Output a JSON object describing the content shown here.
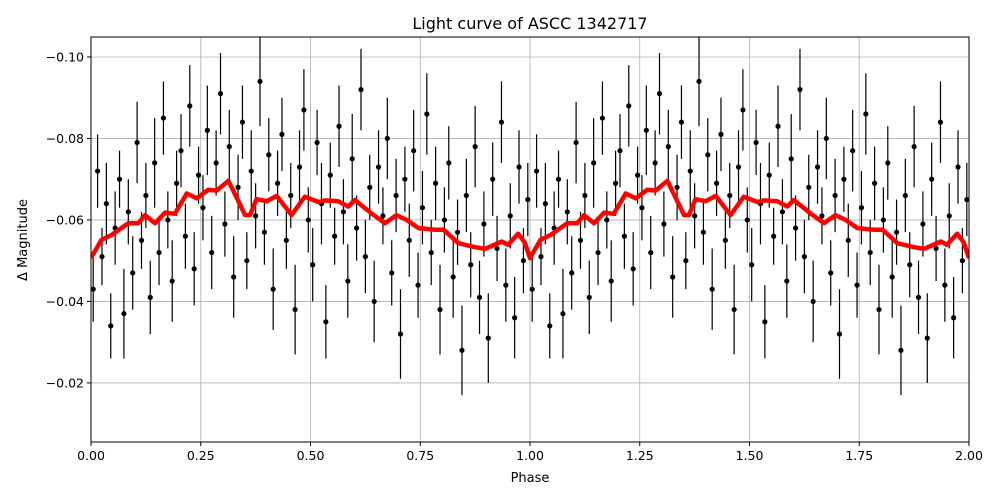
{
  "chart_data": {
    "type": "scatter",
    "title": "Light curve of ASCC 1342717",
    "xlabel": "Phase",
    "ylabel": "Δ Magnitude",
    "xlim": [
      0,
      2
    ],
    "ylim": [
      -0.1049,
      -0.0055
    ],
    "y_inverted": true,
    "grid": true,
    "x_ticks": [
      "0.00",
      "0.25",
      "0.50",
      "0.75",
      "1.00",
      "1.25",
      "1.50",
      "1.75",
      "2.00"
    ],
    "x_tick_values": [
      0,
      0.25,
      0.5,
      0.75,
      1.0,
      1.25,
      1.5,
      1.75,
      2.0
    ],
    "y_ticks": [
      "−0.10",
      "−0.08",
      "−0.06",
      "−0.04",
      "−0.02"
    ],
    "y_tick_values": [
      -0.1,
      -0.08,
      -0.06,
      -0.04,
      -0.02
    ],
    "colors": {
      "points": "#000000",
      "model": "#ff0000"
    },
    "series": [
      {
        "kind": "errorbar-points",
        "color": "#000000",
        "points_phase_mag_err": [
          [
            0.005,
            -0.043,
            0.008
          ],
          [
            0.015,
            -0.072,
            0.009
          ],
          [
            0.025,
            -0.051,
            0.007
          ],
          [
            0.035,
            -0.064,
            0.01
          ],
          [
            0.045,
            -0.034,
            0.008
          ],
          [
            0.055,
            -0.058,
            0.009
          ],
          [
            0.065,
            -0.07,
            0.007
          ],
          [
            0.075,
            -0.037,
            0.011
          ],
          [
            0.085,
            -0.062,
            0.008
          ],
          [
            0.095,
            -0.047,
            0.009
          ],
          [
            0.105,
            -0.079,
            0.01
          ],
          [
            0.115,
            -0.055,
            0.007
          ],
          [
            0.125,
            -0.066,
            0.008
          ],
          [
            0.135,
            -0.041,
            0.009
          ],
          [
            0.145,
            -0.074,
            0.011
          ],
          [
            0.155,
            -0.052,
            0.008
          ],
          [
            0.165,
            -0.085,
            0.009
          ],
          [
            0.175,
            -0.06,
            0.007
          ],
          [
            0.185,
            -0.045,
            0.01
          ],
          [
            0.195,
            -0.069,
            0.008
          ],
          [
            0.205,
            -0.077,
            0.009
          ],
          [
            0.215,
            -0.056,
            0.008
          ],
          [
            0.225,
            -0.088,
            0.01
          ],
          [
            0.235,
            -0.048,
            0.009
          ],
          [
            0.245,
            -0.071,
            0.007
          ],
          [
            0.255,
            -0.063,
            0.008
          ],
          [
            0.265,
            -0.082,
            0.011
          ],
          [
            0.275,
            -0.052,
            0.009
          ],
          [
            0.285,
            -0.074,
            0.008
          ],
          [
            0.295,
            -0.091,
            0.01
          ],
          [
            0.305,
            -0.059,
            0.008
          ],
          [
            0.315,
            -0.078,
            0.009
          ],
          [
            0.325,
            -0.046,
            0.01
          ],
          [
            0.335,
            -0.068,
            0.008
          ],
          [
            0.345,
            -0.084,
            0.009
          ],
          [
            0.355,
            -0.05,
            0.007
          ],
          [
            0.365,
            -0.072,
            0.01
          ],
          [
            0.375,
            -0.061,
            0.008
          ],
          [
            0.385,
            -0.094,
            0.011
          ],
          [
            0.395,
            -0.057,
            0.008
          ],
          [
            0.405,
            -0.076,
            0.009
          ],
          [
            0.415,
            -0.043,
            0.01
          ],
          [
            0.425,
            -0.069,
            0.008
          ],
          [
            0.435,
            -0.081,
            0.009
          ],
          [
            0.445,
            -0.055,
            0.007
          ],
          [
            0.455,
            -0.066,
            0.008
          ],
          [
            0.465,
            -0.038,
            0.011
          ],
          [
            0.475,
            -0.073,
            0.009
          ],
          [
            0.485,
            -0.087,
            0.01
          ],
          [
            0.495,
            -0.06,
            0.008
          ],
          [
            0.505,
            -0.049,
            0.009
          ],
          [
            0.515,
            -0.079,
            0.008
          ],
          [
            0.525,
            -0.064,
            0.01
          ],
          [
            0.535,
            -0.035,
            0.009
          ],
          [
            0.545,
            -0.071,
            0.008
          ],
          [
            0.555,
            -0.056,
            0.007
          ],
          [
            0.565,
            -0.083,
            0.01
          ],
          [
            0.575,
            -0.062,
            0.008
          ],
          [
            0.585,
            -0.045,
            0.009
          ],
          [
            0.595,
            -0.075,
            0.011
          ],
          [
            0.605,
            -0.058,
            0.008
          ],
          [
            0.615,
            -0.092,
            0.01
          ],
          [
            0.625,
            -0.051,
            0.009
          ],
          [
            0.635,
            -0.068,
            0.008
          ],
          [
            0.645,
            -0.04,
            0.01
          ],
          [
            0.655,
            -0.073,
            0.009
          ],
          [
            0.665,
            -0.061,
            0.007
          ],
          [
            0.675,
            -0.08,
            0.01
          ],
          [
            0.685,
            -0.047,
            0.008
          ],
          [
            0.695,
            -0.066,
            0.009
          ],
          [
            0.705,
            -0.032,
            0.011
          ],
          [
            0.715,
            -0.07,
            0.008
          ],
          [
            0.725,
            -0.055,
            0.009
          ],
          [
            0.735,
            -0.077,
            0.01
          ],
          [
            0.745,
            -0.044,
            0.008
          ],
          [
            0.755,
            -0.063,
            0.009
          ],
          [
            0.765,
            -0.086,
            0.01
          ],
          [
            0.775,
            -0.052,
            0.008
          ],
          [
            0.785,
            -0.069,
            0.009
          ],
          [
            0.795,
            -0.038,
            0.011
          ],
          [
            0.805,
            -0.06,
            0.008
          ],
          [
            0.815,
            -0.074,
            0.009
          ],
          [
            0.825,
            -0.046,
            0.01
          ],
          [
            0.835,
            -0.057,
            0.008
          ],
          [
            0.845,
            -0.028,
            0.011
          ],
          [
            0.855,
            -0.066,
            0.009
          ],
          [
            0.865,
            -0.049,
            0.008
          ],
          [
            0.875,
            -0.078,
            0.01
          ],
          [
            0.885,
            -0.041,
            0.009
          ],
          [
            0.895,
            -0.059,
            0.008
          ],
          [
            0.905,
            -0.031,
            0.011
          ],
          [
            0.915,
            -0.07,
            0.009
          ],
          [
            0.925,
            -0.053,
            0.008
          ],
          [
            0.935,
            -0.084,
            0.01
          ],
          [
            0.945,
            -0.044,
            0.009
          ],
          [
            0.955,
            -0.061,
            0.008
          ],
          [
            0.965,
            -0.036,
            0.01
          ],
          [
            0.975,
            -0.073,
            0.009
          ],
          [
            0.985,
            -0.05,
            0.008
          ],
          [
            0.995,
            -0.065,
            0.009
          ]
        ]
      },
      {
        "kind": "line",
        "color": "#ff0000",
        "phase": [
          0.0,
          0.024,
          0.047,
          0.085,
          0.108,
          0.123,
          0.146,
          0.169,
          0.191,
          0.218,
          0.241,
          0.267,
          0.286,
          0.313,
          0.351,
          0.362,
          0.377,
          0.4,
          0.423,
          0.457,
          0.487,
          0.518,
          0.533,
          0.563,
          0.586,
          0.601,
          0.639,
          0.67,
          0.696,
          0.719,
          0.746,
          0.784,
          0.803,
          0.837,
          0.875,
          0.897,
          0.936,
          0.95,
          0.973,
          0.988,
          1.0
        ],
        "mag": [
          -0.0507,
          -0.0551,
          -0.0563,
          -0.0592,
          -0.0592,
          -0.0612,
          -0.0592,
          -0.0618,
          -0.0615,
          -0.0665,
          -0.0653,
          -0.0674,
          -0.0672,
          -0.0696,
          -0.0612,
          -0.0612,
          -0.0651,
          -0.0646,
          -0.0659,
          -0.0612,
          -0.0657,
          -0.0644,
          -0.0648,
          -0.0646,
          -0.0633,
          -0.0649,
          -0.0616,
          -0.0592,
          -0.0612,
          -0.06,
          -0.058,
          -0.0576,
          -0.0576,
          -0.0543,
          -0.0533,
          -0.0529,
          -0.0547,
          -0.0539,
          -0.0566,
          -0.0545,
          -0.0506
        ]
      }
    ]
  }
}
